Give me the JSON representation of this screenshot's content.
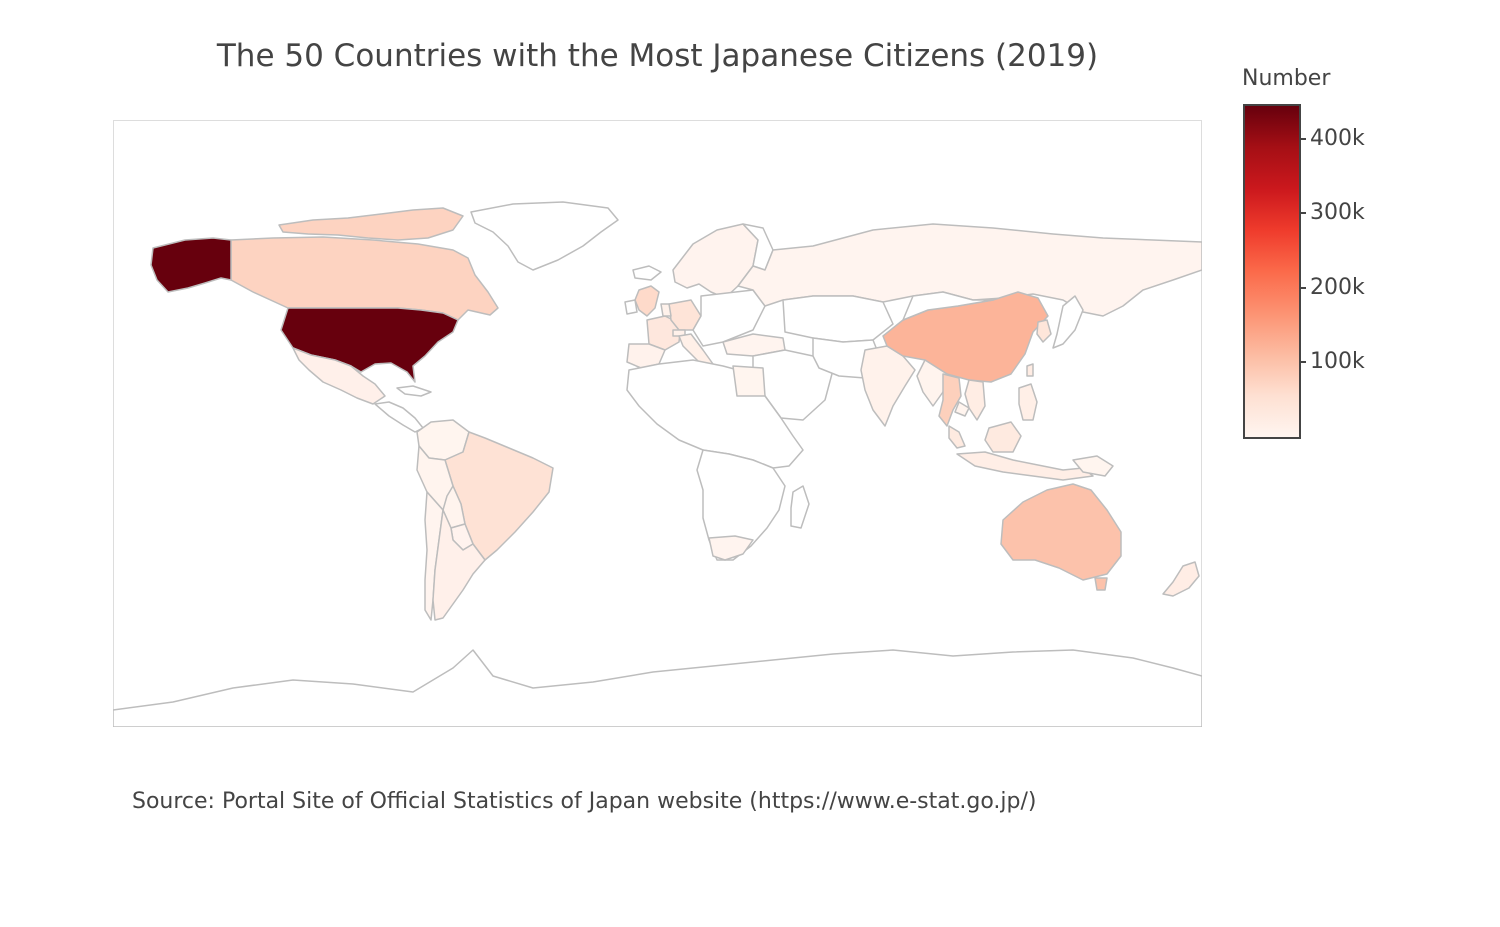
{
  "title": "The 50 Countries with the Most Japanese Citizens (2019)",
  "source_note": "Source: Portal Site of Official Statistics of Japan website (https://www.e-stat.go.jp/)",
  "colorbar": {
    "title": "Number",
    "colorscale": [
      "#fff5f0",
      "#fee0d2",
      "#fcbba1",
      "#fc9272",
      "#fb6a4a",
      "#ef3b2c",
      "#cb181d",
      "#a50f15",
      "#67000d"
    ],
    "range": [
      0,
      444000
    ],
    "ticks": [
      {
        "value": 100000,
        "label": "100k"
      },
      {
        "value": 200000,
        "label": "200k"
      },
      {
        "value": 300000,
        "label": "300k"
      },
      {
        "value": 400000,
        "label": "400k"
      }
    ]
  },
  "colors": {
    "border": "#bdbdbd",
    "no_data": "#ffffff",
    "text": "#444444"
  },
  "map_data": {
    "type": "choropleth",
    "metric": "Number",
    "regions": [
      {
        "id": "usa",
        "value": 444000
      },
      {
        "id": "china",
        "value": 120000
      },
      {
        "id": "australia",
        "value": 100000
      },
      {
        "id": "canada",
        "value": 75000
      },
      {
        "id": "uk",
        "value": 65000
      },
      {
        "id": "thailand",
        "value": 80000
      },
      {
        "id": "brazil",
        "value": 50000
      },
      {
        "id": "korea",
        "value": 40000
      },
      {
        "id": "germany",
        "value": 45000
      },
      {
        "id": "france",
        "value": 36000
      },
      {
        "id": "singapore",
        "value": 36000
      },
      {
        "id": "malaysia",
        "value": 30000
      },
      {
        "id": "taiwan",
        "value": 24000
      },
      {
        "id": "philippines",
        "value": 17000
      },
      {
        "id": "vietnam",
        "value": 22000
      },
      {
        "id": "indonesia",
        "value": 19000
      },
      {
        "id": "new-zealand",
        "value": 20000
      },
      {
        "id": "argentina",
        "value": 12000
      },
      {
        "id": "mexico",
        "value": 12000
      },
      {
        "id": "india",
        "value": 9000
      },
      {
        "id": "italy",
        "value": 14000
      },
      {
        "id": "spain",
        "value": 8000
      },
      {
        "id": "switzerland",
        "value": 11000
      },
      {
        "id": "netherlands",
        "value": 9000
      },
      {
        "id": "south-africa",
        "value": 1500
      },
      {
        "id": "egypt",
        "value": 1000
      },
      {
        "id": "turkey",
        "value": 1800
      },
      {
        "id": "russia",
        "value": 2000
      },
      {
        "id": "peru",
        "value": 3500
      },
      {
        "id": "colombia",
        "value": 1300
      },
      {
        "id": "chile",
        "value": 1700
      },
      {
        "id": "paraguay",
        "value": 4000
      },
      {
        "id": "bolivia",
        "value": 2900
      },
      {
        "id": "uae",
        "value": 4300
      },
      {
        "id": "myanmar",
        "value": 3000
      },
      {
        "id": "cambodia",
        "value": 3000
      },
      {
        "id": "scandinavia",
        "value": 4000
      },
      {
        "id": "png",
        "value": 1000
      }
    ]
  }
}
